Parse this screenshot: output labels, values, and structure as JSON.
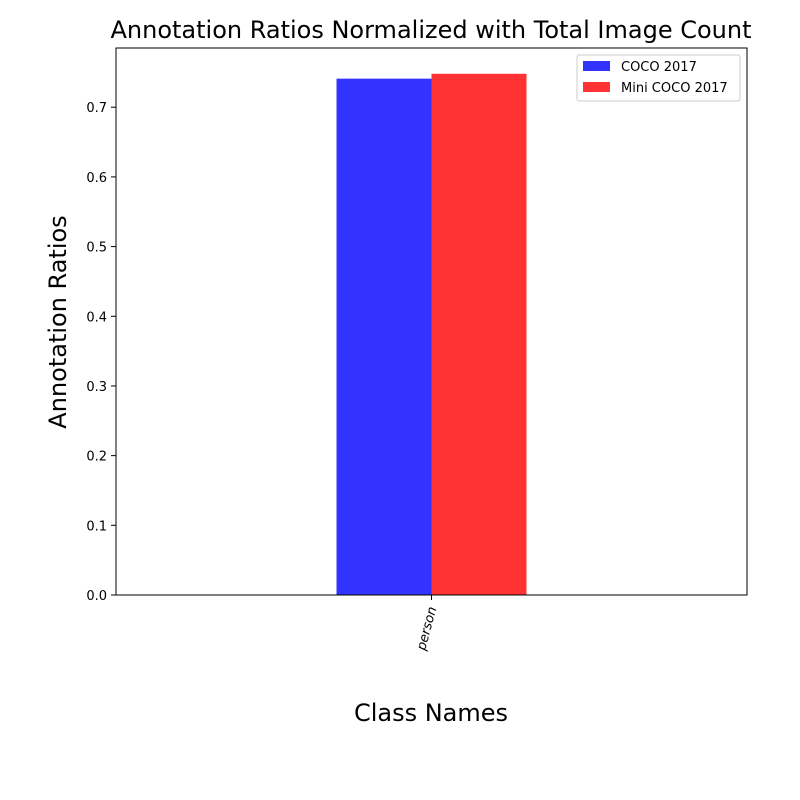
{
  "chart_data": {
    "type": "bar",
    "title": "Annotation Ratios Normalized with Total Image Count",
    "xlabel": "Class Names",
    "ylabel": "Annotation Ratios",
    "categories": [
      "person"
    ],
    "series": [
      {
        "name": "COCO 2017",
        "values": [
          0.741
        ],
        "color": "#3333ff"
      },
      {
        "name": "Mini COCO 2017",
        "values": [
          0.748
        ],
        "color": "#ff3333"
      }
    ],
    "ylim": [
      0,
      0.785
    ],
    "yticks": [
      "0.0",
      "0.1",
      "0.2",
      "0.3",
      "0.4",
      "0.5",
      "0.6",
      "0.7"
    ],
    "legend_position": "top-right",
    "grid": false
  }
}
